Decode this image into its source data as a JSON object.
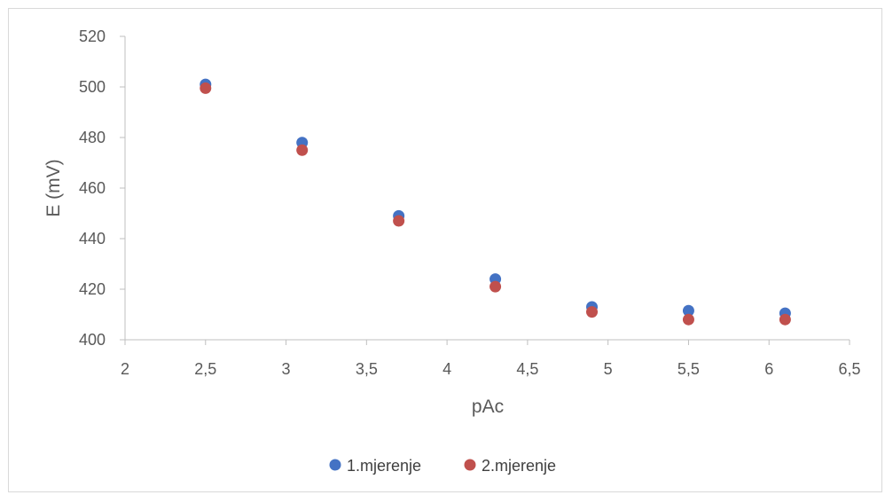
{
  "chart_data": {
    "type": "scatter",
    "xlabel": "pAc",
    "ylabel": "E (mV)",
    "xlim": [
      2,
      6.5
    ],
    "ylim": [
      400,
      520
    ],
    "x_ticks": [
      2,
      2.5,
      3,
      3.5,
      4,
      4.5,
      5,
      5.5,
      6,
      6.5
    ],
    "y_ticks": [
      400,
      420,
      440,
      460,
      480,
      500,
      520
    ],
    "x_tick_labels": [
      "2",
      "2,5",
      "3",
      "3,5",
      "4",
      "4,5",
      "5",
      "5,5",
      "6",
      "6,5"
    ],
    "y_tick_labels": [
      "400",
      "420",
      "440",
      "460",
      "480",
      "500",
      "520"
    ],
    "grid": false,
    "legend_position": "bottom",
    "series": [
      {
        "name": "1.mjerenje",
        "color": "#4472c4",
        "x": [
          2.5,
          3.1,
          3.7,
          4.3,
          4.9,
          5.5,
          6.1
        ],
        "y": [
          501,
          478,
          449,
          424,
          413,
          411.5,
          410.5
        ]
      },
      {
        "name": "2.mjerenje",
        "color": "#c0504d",
        "x": [
          2.5,
          3.1,
          3.7,
          4.3,
          4.9,
          5.5,
          6.1
        ],
        "y": [
          499.5,
          475,
          447,
          421,
          411,
          408,
          408
        ]
      }
    ]
  }
}
